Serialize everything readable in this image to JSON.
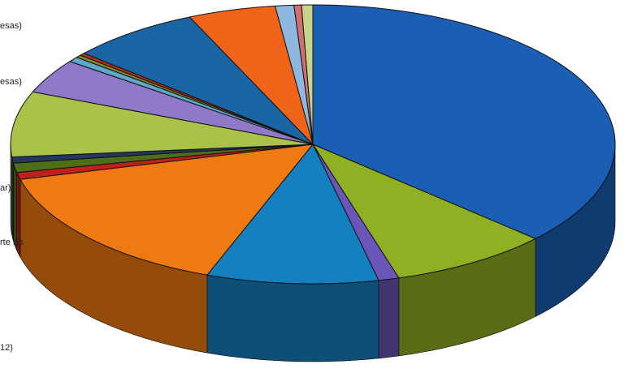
{
  "chart_data": {
    "type": "pie",
    "style": "3d",
    "title": "",
    "start_angle_deg": 0,
    "direction": "clockwise",
    "slices": [
      {
        "label": "",
        "value": 36.9,
        "color": "#1a5fb4"
      },
      {
        "label": "",
        "value": 8.6,
        "color": "#8fb022"
      },
      {
        "label": "",
        "value": 1.1,
        "color": "#6b55b8"
      },
      {
        "label": "",
        "value": 9.2,
        "color": "#1580c0"
      },
      {
        "label": "",
        "value": 15.3,
        "color": "#f07a12"
      },
      {
        "label": "",
        "value": 0.8,
        "color": "#c0201a"
      },
      {
        "label": "",
        "value": 1.1,
        "color": "#4f6e18"
      },
      {
        "label": "",
        "value": 0.7,
        "color": "#22385e"
      },
      {
        "label": "",
        "value": 7.6,
        "color": "#a8c24a"
      },
      {
        "label": "",
        "value": 4.0,
        "color": "#8f79c8"
      },
      {
        "label": "",
        "value": 0.6,
        "color": "#5fa8c8"
      },
      {
        "label": "",
        "value": 0.3,
        "color": "#8a8a2a"
      },
      {
        "label": "",
        "value": 0.3,
        "color": "#b03020"
      },
      {
        "label": "",
        "value": 7.0,
        "color": "#1c65a5"
      },
      {
        "label": "",
        "value": 4.7,
        "color": "#ef6418"
      },
      {
        "label": "",
        "value": 1.0,
        "color": "#8fb8e0"
      },
      {
        "label": "",
        "value": 0.4,
        "color": "#d07070"
      },
      {
        "label": "",
        "value": 0.6,
        "color": "#c8d488"
      }
    ],
    "legend": "none",
    "partial_labels": [
      "esas)",
      "esas)",
      "ar)",
      "rte Es",
      "12)"
    ]
  }
}
